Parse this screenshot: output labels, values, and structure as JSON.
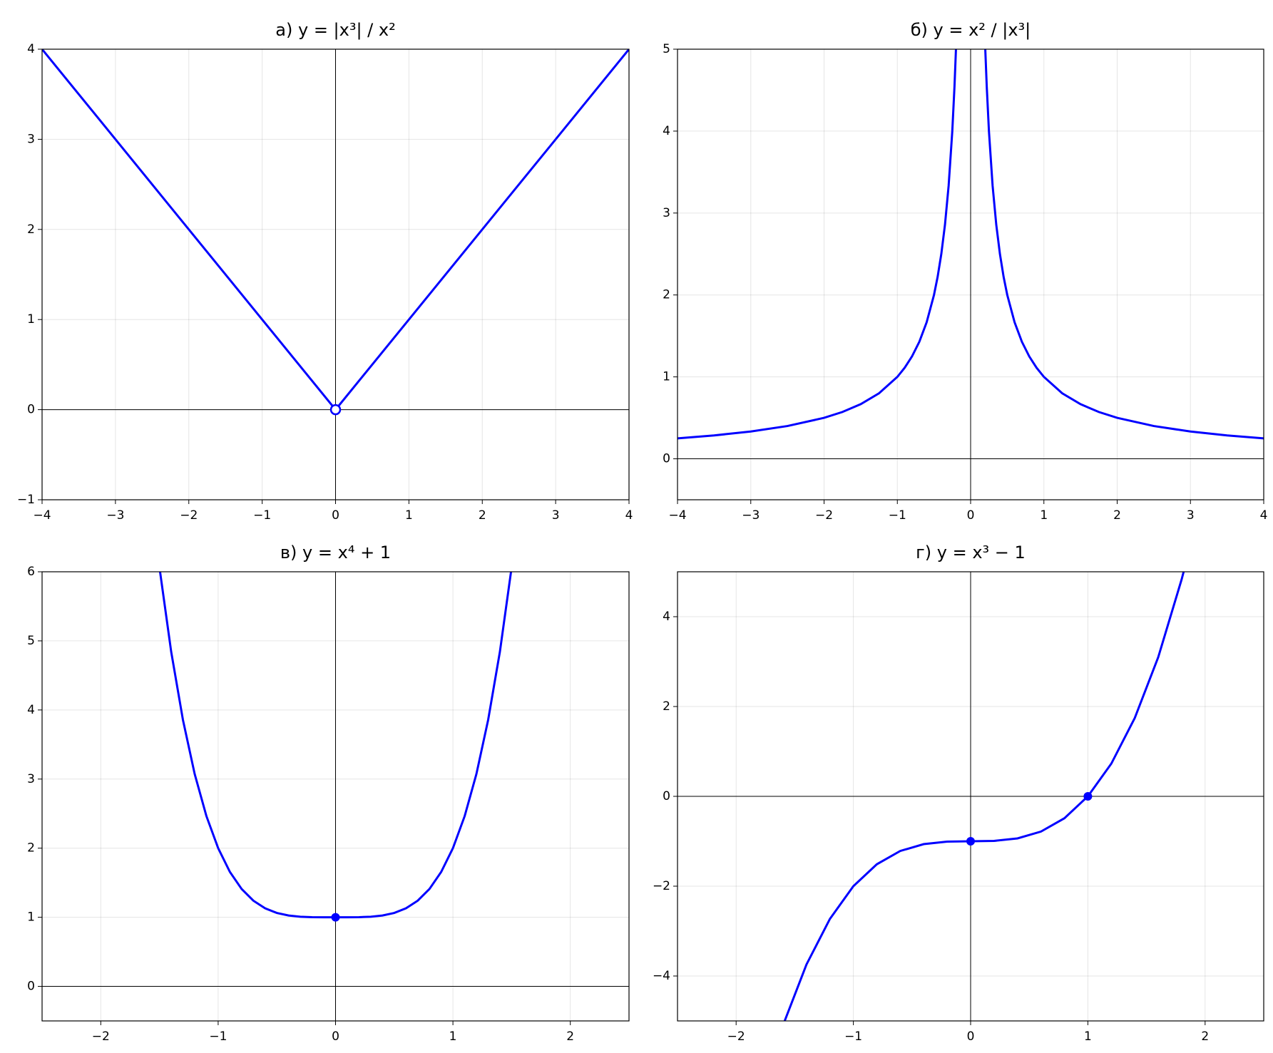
{
  "chart_data": [
    {
      "type": "line",
      "title": "а) y = |x³| / x²",
      "color": "#0000ff",
      "grid": true,
      "x": [
        -4,
        0,
        4
      ],
      "values": [
        4,
        0,
        4
      ],
      "points": {
        "x": [
          0
        ],
        "values": [
          0
        ],
        "marker": "open"
      },
      "xlim": [
        -4,
        4
      ],
      "ylim": [
        -1,
        4
      ],
      "xticks": [
        {
          "value": -4,
          "label": "−4"
        },
        {
          "value": -3,
          "label": "−3"
        },
        {
          "value": -2,
          "label": "−2"
        },
        {
          "value": -1,
          "label": "−1"
        },
        0,
        1,
        2,
        3,
        4
      ],
      "yticks": [
        {
          "value": -1,
          "label": "−1"
        },
        0,
        1,
        2,
        3,
        4
      ]
    },
    {
      "type": "line",
      "title": "б) y = x² / |x³|",
      "color": "#0000ff",
      "grid": true,
      "x": [
        -4,
        -3.5,
        -3,
        -2.5,
        -2,
        -1.75,
        -1.5,
        -1.25,
        -1,
        -0.9,
        -0.8,
        -0.7,
        -0.6,
        -0.5,
        -0.45,
        -0.4,
        -0.35,
        -0.3,
        -0.25,
        -0.22,
        -0.2,
        0,
        0.2,
        0.22,
        0.25,
        0.3,
        0.35,
        0.4,
        0.45,
        0.5,
        0.6,
        0.7,
        0.8,
        0.9,
        1,
        1.25,
        1.5,
        1.75,
        2,
        2.5,
        3,
        3.5,
        4
      ],
      "values": [
        0.25,
        0.2857,
        0.3333,
        0.4,
        0.5,
        0.5714,
        0.6667,
        0.8,
        1,
        1.1111,
        1.25,
        1.4286,
        1.6667,
        2,
        2.2222,
        2.5,
        2.8571,
        3.3333,
        4,
        4.5455,
        5,
        null,
        5,
        4.5455,
        4,
        3.3333,
        2.8571,
        2.5,
        2.2222,
        2,
        1.6667,
        1.4286,
        1.25,
        1.1111,
        1,
        0.8,
        0.6667,
        0.5714,
        0.5,
        0.4,
        0.3333,
        0.2857,
        0.25
      ],
      "xlim": [
        -4,
        4
      ],
      "ylim": [
        -0.5,
        5
      ],
      "xticks": [
        {
          "value": -4,
          "label": "−4"
        },
        {
          "value": -3,
          "label": "−3"
        },
        {
          "value": -2,
          "label": "−2"
        },
        {
          "value": -1,
          "label": "−1"
        },
        0,
        1,
        2,
        3,
        4
      ],
      "yticks": [
        0,
        1,
        2,
        3,
        4,
        5
      ]
    },
    {
      "type": "line",
      "title": "в) y = x⁴ + 1",
      "color": "#0000ff",
      "grid": true,
      "x": [
        -1.5,
        -1.4,
        -1.3,
        -1.2,
        -1.1,
        -1,
        -0.9,
        -0.8,
        -0.7,
        -0.6,
        -0.5,
        -0.4,
        -0.3,
        -0.2,
        -0.1,
        0,
        0.1,
        0.2,
        0.3,
        0.4,
        0.5,
        0.6,
        0.7,
        0.8,
        0.9,
        1,
        1.1,
        1.2,
        1.3,
        1.4,
        1.5
      ],
      "values": [
        6.0625,
        4.8416,
        3.8561,
        3.0736,
        2.4641,
        2,
        1.6561,
        1.4096,
        1.2401,
        1.1296,
        1.0625,
        1.0256,
        1.0081,
        1.0016,
        1.0001,
        1,
        1.0001,
        1.0016,
        1.0081,
        1.0256,
        1.0625,
        1.1296,
        1.2401,
        1.4096,
        1.6561,
        2,
        2.4641,
        3.0736,
        3.8561,
        4.8416,
        6.0625
      ],
      "points": {
        "x": [
          0
        ],
        "values": [
          1
        ],
        "marker": "filled"
      },
      "xlim": [
        -2.5,
        2.5
      ],
      "ylim": [
        -0.5,
        6
      ],
      "xticks": [
        {
          "value": -2,
          "label": "−2"
        },
        {
          "value": -1,
          "label": "−1"
        },
        0,
        1,
        2
      ],
      "yticks": [
        0,
        1,
        2,
        3,
        4,
        5,
        6
      ]
    },
    {
      "type": "line",
      "title": "г) y = x³ − 1",
      "color": "#0000ff",
      "grid": true,
      "x": [
        -1.6,
        -1.4,
        -1.2,
        -1,
        -0.8,
        -0.6,
        -0.4,
        -0.2,
        0,
        0.2,
        0.4,
        0.6,
        0.8,
        1,
        1.2,
        1.4,
        1.6,
        1.8,
        1.85
      ],
      "values": [
        -5.096,
        -3.744,
        -2.728,
        -2,
        -1.512,
        -1.216,
        -1.064,
        -1.008,
        -1,
        -0.992,
        -0.936,
        -0.784,
        -0.488,
        0,
        0.728,
        1.744,
        3.096,
        4.832,
        5.3316
      ],
      "points": {
        "x": [
          0,
          1
        ],
        "values": [
          -1,
          0
        ],
        "marker": "filled"
      },
      "xlim": [
        -2.5,
        2.5
      ],
      "ylim": [
        -5,
        5
      ],
      "xticks": [
        {
          "value": -2,
          "label": "−2"
        },
        {
          "value": -1,
          "label": "−1"
        },
        0,
        1,
        2
      ],
      "yticks": [
        {
          "value": -4,
          "label": "−4"
        },
        {
          "value": -2,
          "label": "−2"
        },
        0,
        2,
        4
      ]
    }
  ]
}
